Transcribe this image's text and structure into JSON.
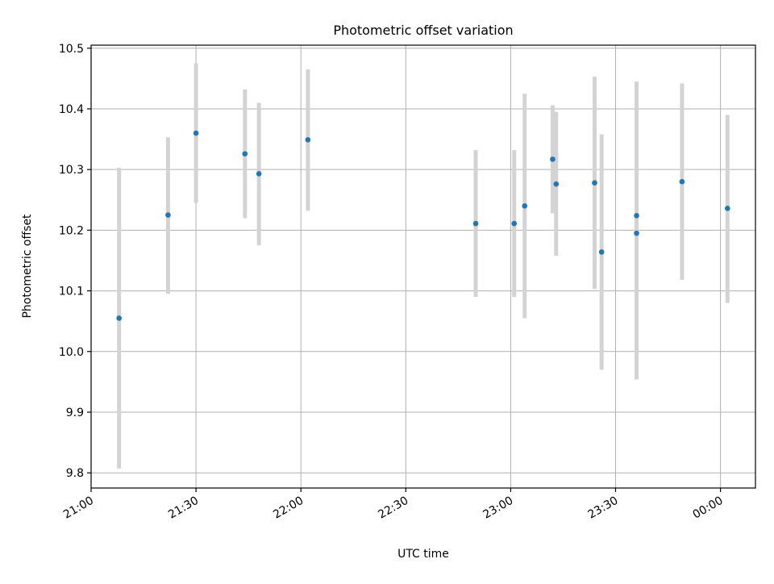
{
  "chart_data": {
    "type": "scatter",
    "title": "Photometric offset variation",
    "xlabel": "UTC time",
    "ylabel": "Photometric offset",
    "x_kind": "time",
    "xlim": [
      "21:00",
      "00:10"
    ],
    "ylim": [
      9.775,
      10.505
    ],
    "x_ticks": [
      "21:00",
      "21:30",
      "22:00",
      "22:30",
      "23:00",
      "23:30",
      "00:00"
    ],
    "y_ticks": [
      9.8,
      9.9,
      10.0,
      10.1,
      10.2,
      10.3,
      10.4,
      10.5
    ],
    "grid": true,
    "point_color": "#1f77b4",
    "errorbar_color": "#d3d3d3",
    "points": [
      {
        "time": "21:08",
        "value": 10.055,
        "err_low": 9.807,
        "err_high": 10.303
      },
      {
        "time": "21:22",
        "value": 10.225,
        "err_low": 10.095,
        "err_high": 10.353
      },
      {
        "time": "21:30",
        "value": 10.36,
        "err_low": 10.245,
        "err_high": 10.475
      },
      {
        "time": "21:44",
        "value": 10.326,
        "err_low": 10.22,
        "err_high": 10.432
      },
      {
        "time": "21:48",
        "value": 10.293,
        "err_low": 10.175,
        "err_high": 10.41
      },
      {
        "time": "22:02",
        "value": 10.349,
        "err_low": 10.232,
        "err_high": 10.465
      },
      {
        "time": "22:50",
        "value": 10.211,
        "err_low": 10.09,
        "err_high": 10.332
      },
      {
        "time": "23:01",
        "value": 10.211,
        "err_low": 10.09,
        "err_high": 10.332
      },
      {
        "time": "23:04",
        "value": 10.24,
        "err_low": 10.055,
        "err_high": 10.425
      },
      {
        "time": "23:12",
        "value": 10.317,
        "err_low": 10.228,
        "err_high": 10.406
      },
      {
        "time": "23:13",
        "value": 10.276,
        "err_low": 10.158,
        "err_high": 10.395
      },
      {
        "time": "23:24",
        "value": 10.278,
        "err_low": 10.103,
        "err_high": 10.453
      },
      {
        "time": "23:26",
        "value": 10.164,
        "err_low": 9.97,
        "err_high": 10.358
      },
      {
        "time": "23:36",
        "value": 10.195,
        "err_low": 9.954,
        "err_high": 10.437
      },
      {
        "time": "23:36",
        "value": 10.224,
        "err_low": 10.003,
        "err_high": 10.445
      },
      {
        "time": "23:49",
        "value": 10.28,
        "err_low": 10.118,
        "err_high": 10.442
      },
      {
        "time": "00:02",
        "value": 10.236,
        "err_low": 10.08,
        "err_high": 10.39
      }
    ]
  }
}
